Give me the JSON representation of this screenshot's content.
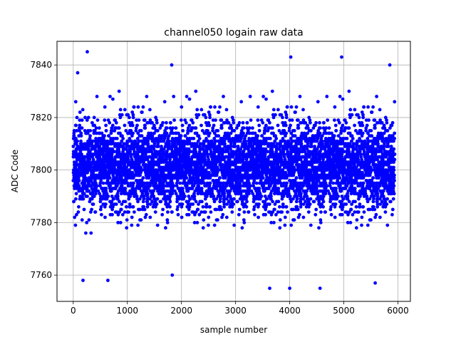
{
  "chart_data": {
    "type": "scatter",
    "title": "channel050 logain raw data",
    "xlabel": "sample number",
    "ylabel": "ADC Code",
    "xlim": [
      -300,
      6230
    ],
    "ylim": [
      7750,
      7849
    ],
    "x_ticks": [
      0,
      1000,
      2000,
      3000,
      4000,
      5000,
      6000
    ],
    "y_ticks": [
      7760,
      7780,
      7800,
      7820,
      7840
    ],
    "grid": true,
    "marker_color": "#0000ff",
    "n_samples": 6000,
    "x_range": [
      0,
      5940
    ],
    "y_center": 7802,
    "y_typical_range": [
      7785,
      7818
    ],
    "y_min_observed": 7755,
    "y_max_observed": 7845,
    "notable_points": [
      {
        "x": 260,
        "y": 7845
      },
      {
        "x": 4020,
        "y": 7843
      },
      {
        "x": 4960,
        "y": 7843
      },
      {
        "x": 1820,
        "y": 7840
      },
      {
        "x": 5850,
        "y": 7840
      },
      {
        "x": 180,
        "y": 7758
      },
      {
        "x": 640,
        "y": 7758
      },
      {
        "x": 1830,
        "y": 7760
      },
      {
        "x": 3630,
        "y": 7755
      },
      {
        "x": 4000,
        "y": 7755
      },
      {
        "x": 4560,
        "y": 7755
      },
      {
        "x": 5580,
        "y": 7757
      }
    ]
  }
}
